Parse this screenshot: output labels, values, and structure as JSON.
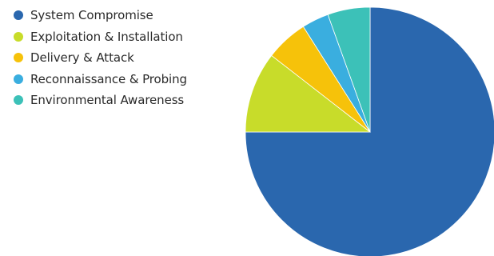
{
  "chart_data": {
    "type": "pie",
    "title": "",
    "start_angle_deg": 0,
    "direction": "clockwise-from-12-oclock",
    "legend_position": "top-left",
    "slices": [
      {
        "label": "System Compromise",
        "value": 75.0,
        "color": "#2a67ae"
      },
      {
        "label": "Exploitation & Installation",
        "value": 10.5,
        "color": "#c8dc2a"
      },
      {
        "label": "Delivery & Attack",
        "value": 5.5,
        "color": "#f6c20a"
      },
      {
        "label": "Reconnaissance & Probing",
        "value": 3.5,
        "color": "#3aaedf"
      },
      {
        "label": "Environmental Awareness",
        "value": 5.5,
        "color": "#3cc1b8"
      }
    ]
  },
  "legend": {
    "items": [
      {
        "label": "System Compromise",
        "color": "#2a67ae"
      },
      {
        "label": "Exploitation & Installation",
        "color": "#c8dc2a"
      },
      {
        "label": "Delivery & Attack",
        "color": "#f6c20a"
      },
      {
        "label": "Reconnaissance & Probing",
        "color": "#3aaedf"
      },
      {
        "label": "Environmental Awareness",
        "color": "#3cc1b8"
      }
    ]
  }
}
